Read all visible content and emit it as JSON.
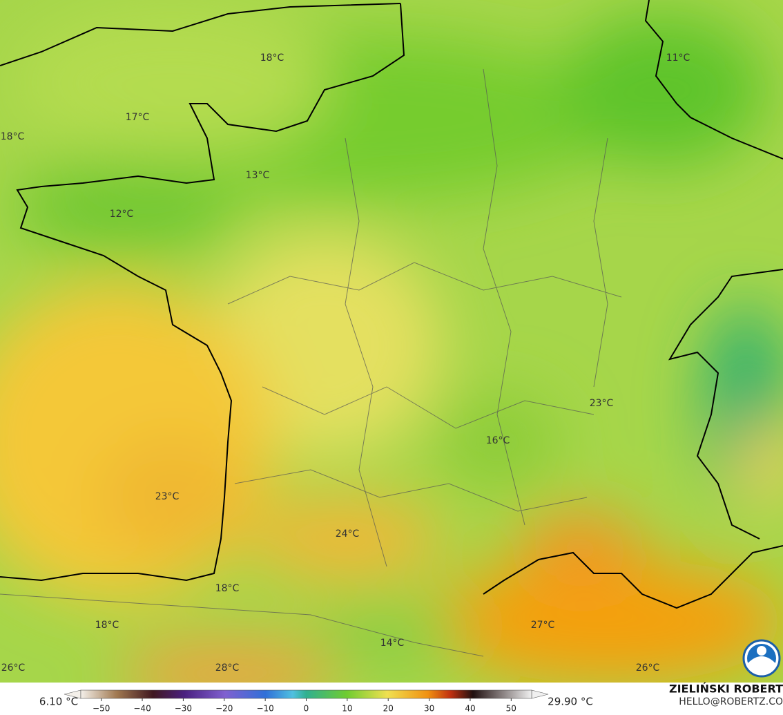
{
  "map": {
    "labels": [
      "18°C",
      "11°C",
      "17°C",
      "18°C",
      "13°C",
      "12°C",
      "23°C",
      "16°C",
      "23°C",
      "24°C",
      "18°C",
      "27°C",
      "18°C",
      "14°C",
      "26°C",
      "28°C",
      "26°C"
    ],
    "colorbar": {
      "range": [
        -55,
        55
      ],
      "ticks": [
        {
          "value": -50,
          "label": "−50"
        },
        {
          "value": -40,
          "label": "−40"
        },
        {
          "value": -30,
          "label": "−30"
        },
        {
          "value": -20,
          "label": "−20"
        },
        {
          "value": -10,
          "label": "−10"
        },
        0,
        10,
        20,
        30,
        40,
        50
      ],
      "min_label": "6.10 °C",
      "max_label": "29.90 °C"
    },
    "credit": {
      "name": "ZIELIŃSKI ROBERT",
      "contact": "HELLO@ROBERTZ.CO"
    }
  }
}
